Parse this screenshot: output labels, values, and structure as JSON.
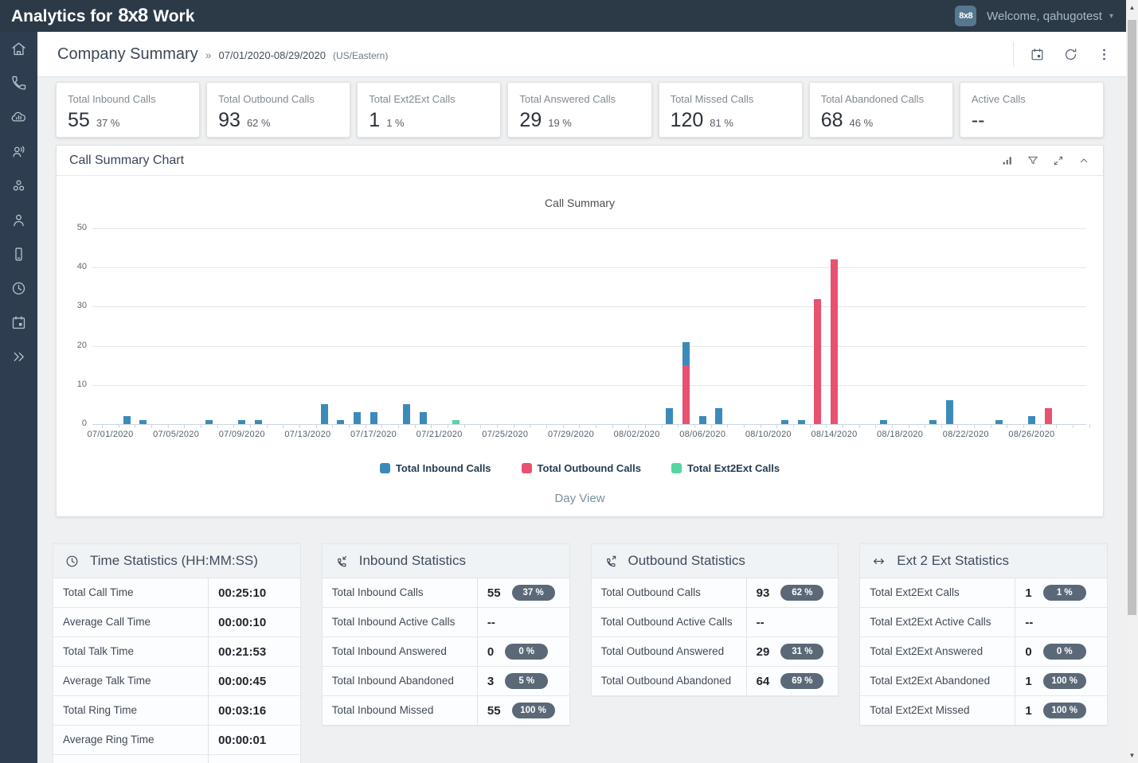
{
  "app_header": {
    "title_prefix": "Analytics for",
    "brand": "8x8",
    "title_suffix": "Work",
    "user_badge": "8x8",
    "welcome_text": "Welcome, qahugotest"
  },
  "sidebar": {
    "items": [
      {
        "icon": "home-icon"
      },
      {
        "icon": "phone-icon"
      },
      {
        "icon": "cloud-analytics-icon"
      },
      {
        "icon": "conference-icon"
      },
      {
        "icon": "teams-icon"
      },
      {
        "icon": "user-icon"
      },
      {
        "icon": "devices-icon"
      },
      {
        "icon": "clock-icon"
      },
      {
        "icon": "calendar-icon"
      },
      {
        "icon": "expand-sidebar-icon"
      }
    ]
  },
  "toolbar": {
    "page_title": "Company Summary",
    "separator": "»",
    "date_range": "07/01/2020-08/29/2020",
    "timezone": "(US/Eastern)"
  },
  "kpi_cards": [
    {
      "label": "Total Inbound Calls",
      "value": "55",
      "percent": "37 %"
    },
    {
      "label": "Total Outbound Calls",
      "value": "93",
      "percent": "62 %"
    },
    {
      "label": "Total Ext2Ext Calls",
      "value": "1",
      "percent": "1 %"
    },
    {
      "label": "Total Answered Calls",
      "value": "29",
      "percent": "19 %"
    },
    {
      "label": "Total Missed Calls",
      "value": "120",
      "percent": "81 %"
    },
    {
      "label": "Total Abandoned Calls",
      "value": "68",
      "percent": "46 %"
    },
    {
      "label": "Active Calls",
      "value": "--",
      "percent": ""
    }
  ],
  "chart_panel": {
    "title": "Call Summary Chart",
    "footer": "Day View"
  },
  "chart_data": {
    "type": "bar",
    "stacked": true,
    "title": "Call Summary",
    "xlabel": "",
    "ylabel": "",
    "ylim": [
      0,
      50
    ],
    "y_ticks": [
      0,
      10,
      20,
      30,
      40,
      50
    ],
    "x_start": "07/01/2020",
    "x_end": "08/29/2020",
    "x_tick_labels": [
      "07/01/2020",
      "07/05/2020",
      "07/09/2020",
      "07/13/2020",
      "07/17/2020",
      "07/21/2020",
      "07/25/2020",
      "07/29/2020",
      "08/02/2020",
      "08/06/2020",
      "08/10/2020",
      "08/14/2020",
      "08/18/2020",
      "08/22/2020",
      "08/26/2020"
    ],
    "grid": true,
    "legend_position": "bottom",
    "series": [
      {
        "name": "Total Inbound Calls",
        "color": "#3b8bba",
        "points": [
          {
            "date": "07/02/2020",
            "value": 2
          },
          {
            "date": "07/03/2020",
            "value": 1
          },
          {
            "date": "07/07/2020",
            "value": 1
          },
          {
            "date": "07/09/2020",
            "value": 1
          },
          {
            "date": "07/10/2020",
            "value": 1
          },
          {
            "date": "07/14/2020",
            "value": 5
          },
          {
            "date": "07/15/2020",
            "value": 1
          },
          {
            "date": "07/16/2020",
            "value": 3
          },
          {
            "date": "07/17/2020",
            "value": 3
          },
          {
            "date": "07/19/2020",
            "value": 5
          },
          {
            "date": "07/20/2020",
            "value": 3
          },
          {
            "date": "08/04/2020",
            "value": 4
          },
          {
            "date": "08/05/2020",
            "value": 6
          },
          {
            "date": "08/06/2020",
            "value": 2
          },
          {
            "date": "08/07/2020",
            "value": 4
          },
          {
            "date": "08/11/2020",
            "value": 1
          },
          {
            "date": "08/12/2020",
            "value": 1
          },
          {
            "date": "08/17/2020",
            "value": 1
          },
          {
            "date": "08/20/2020",
            "value": 1
          },
          {
            "date": "08/21/2020",
            "value": 6
          },
          {
            "date": "08/24/2020",
            "value": 1
          },
          {
            "date": "08/26/2020",
            "value": 2
          }
        ]
      },
      {
        "name": "Total Outbound Calls",
        "color": "#e8516f",
        "points": [
          {
            "date": "08/05/2020",
            "value": 15
          },
          {
            "date": "08/13/2020",
            "value": 32
          },
          {
            "date": "08/14/2020",
            "value": 42
          },
          {
            "date": "08/27/2020",
            "value": 4
          }
        ]
      },
      {
        "name": "Total Ext2Ext Calls",
        "color": "#56d5a0",
        "points": [
          {
            "date": "07/22/2020",
            "value": 1
          }
        ]
      }
    ]
  },
  "tables": [
    {
      "icon": "time-icon",
      "title": "Time Statistics (HH:MM:SS)",
      "clipped_extra_row": true,
      "rows": [
        {
          "label": "Total Call Time",
          "value": "00:25:10"
        },
        {
          "label": "Average Call Time",
          "value": "00:00:10"
        },
        {
          "label": "Total Talk Time",
          "value": "00:21:53"
        },
        {
          "label": "Average Talk Time",
          "value": "00:00:45"
        },
        {
          "label": "Total Ring Time",
          "value": "00:03:16"
        },
        {
          "label": "Average Ring Time",
          "value": "00:00:01"
        }
      ]
    },
    {
      "icon": "inbound-call-icon",
      "title": "Inbound Statistics",
      "rows": [
        {
          "label": "Total Inbound Calls",
          "value": "55",
          "badge": "37 %"
        },
        {
          "label": "Total Inbound Active Calls",
          "value": "--"
        },
        {
          "label": "Total Inbound Answered",
          "value": "0",
          "badge": "0 %"
        },
        {
          "label": "Total Inbound Abandoned",
          "value": "3",
          "badge": "5 %"
        },
        {
          "label": "Total Inbound Missed",
          "value": "55",
          "badge": "100 %"
        }
      ]
    },
    {
      "icon": "outbound-call-icon",
      "title": "Outbound Statistics",
      "rows": [
        {
          "label": "Total Outbound Calls",
          "value": "93",
          "badge": "62 %"
        },
        {
          "label": "Total Outbound Active Calls",
          "value": "--"
        },
        {
          "label": "Total Outbound Answered",
          "value": "29",
          "badge": "31 %"
        },
        {
          "label": "Total Outbound Abandoned",
          "value": "64",
          "badge": "69 %"
        }
      ]
    },
    {
      "icon": "ext2ext-icon",
      "title": "Ext 2 Ext Statistics",
      "rows": [
        {
          "label": "Total Ext2Ext Calls",
          "value": "1",
          "badge": "1 %"
        },
        {
          "label": "Total Ext2Ext Active Calls",
          "value": "--"
        },
        {
          "label": "Total Ext2Ext Answered",
          "value": "0",
          "badge": "0 %"
        },
        {
          "label": "Total Ext2Ext Abandoned",
          "value": "1",
          "badge": "100 %"
        },
        {
          "label": "Total Ext2Ext Missed",
          "value": "1",
          "badge": "100 %"
        }
      ]
    }
  ],
  "colors": {
    "inbound": "#3b8bba",
    "outbound": "#e8516f",
    "ext2ext": "#56d5a0",
    "badge_bg": "#5b6877",
    "header_bg": "#2c3a48",
    "sidebar_bg": "#2e3d4f"
  }
}
